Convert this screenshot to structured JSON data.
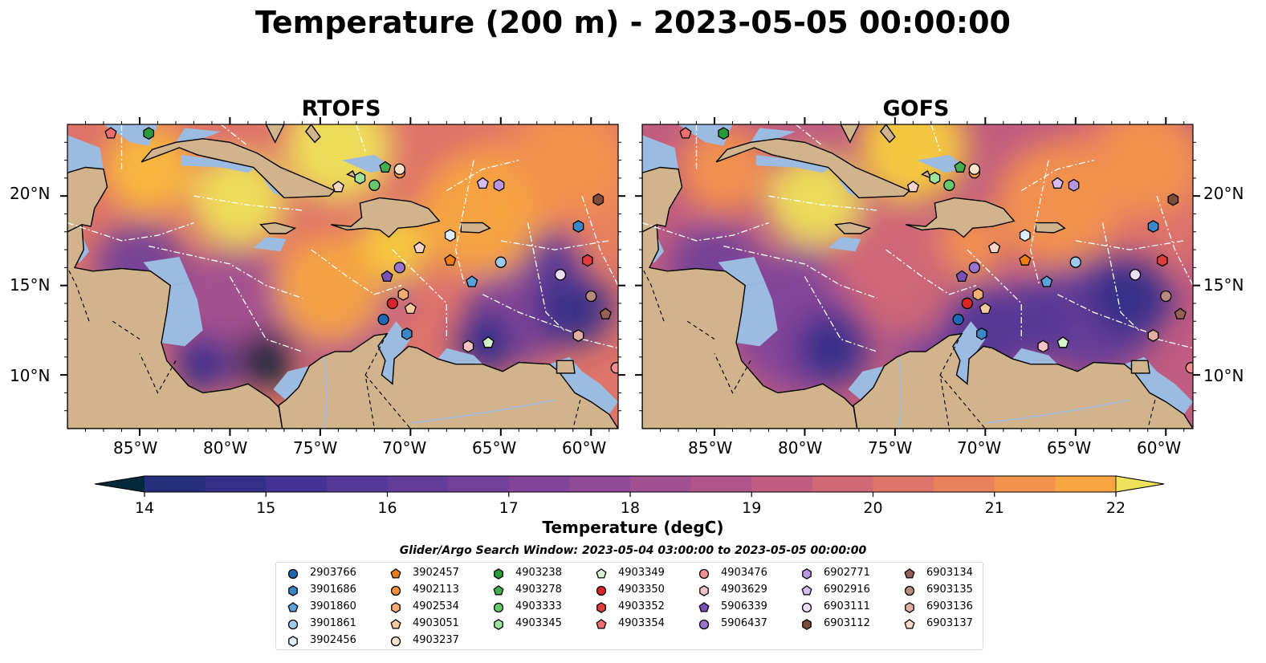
{
  "figure": {
    "title": "Temperature (200 m) - 2023-05-05 00:00:00"
  },
  "panels": [
    {
      "title": "RTOFS"
    },
    {
      "title": "GOFS"
    }
  ],
  "axes": {
    "x_ticks": [
      "85°W",
      "80°W",
      "75°W",
      "70°W",
      "65°W",
      "60°W"
    ],
    "y_ticks": [
      "20°N",
      "15°N",
      "10°N"
    ]
  },
  "colorbar": {
    "label": "Temperature (degC)",
    "ticks": [
      "14",
      "15",
      "16",
      "17",
      "18",
      "19",
      "20",
      "21",
      "22"
    ],
    "colors": [
      "#05283a",
      "#0c2e4c",
      "#182f66",
      "#262f7b",
      "#352f8a",
      "#453393",
      "#543897",
      "#623c98",
      "#714098",
      "#804599",
      "#904a96",
      "#a04f91",
      "#b0558a",
      "#c15d80",
      "#d06876",
      "#de746a",
      "#e9825c",
      "#f2924d",
      "#f7a541",
      "#f9b93b",
      "#f6cd3d",
      "#ede35a"
    ]
  },
  "legend": {
    "title": "Glider/Argo Search Window: 2023-05-04 03:00:00 to 2023-05-05 00:00:00",
    "items": [
      {
        "id": "2903766",
        "marker": "circle",
        "color": "#1f68b3"
      },
      {
        "id": "3901686",
        "marker": "hexagon",
        "color": "#3a86c6"
      },
      {
        "id": "3901860",
        "marker": "pentagon",
        "color": "#5ba3dc"
      },
      {
        "id": "3901861",
        "marker": "circle",
        "color": "#9ccaee"
      },
      {
        "id": "3902456",
        "marker": "hexagon",
        "color": "#ddeeff"
      },
      {
        "id": "3902457",
        "marker": "pentagon",
        "color": "#f07d10"
      },
      {
        "id": "4902113",
        "marker": "circle",
        "color": "#f5903a"
      },
      {
        "id": "4902534",
        "marker": "hexagon",
        "color": "#f9ad70"
      },
      {
        "id": "4903051",
        "marker": "pentagon",
        "color": "#fbc99d"
      },
      {
        "id": "4903237",
        "marker": "circle",
        "color": "#fde3c9"
      },
      {
        "id": "4903238",
        "marker": "hexagon",
        "color": "#2a9a3b"
      },
      {
        "id": "4903278",
        "marker": "pentagon",
        "color": "#44ad4d"
      },
      {
        "id": "4903333",
        "marker": "circle",
        "color": "#68c96a"
      },
      {
        "id": "4903345",
        "marker": "hexagon",
        "color": "#9fe39a"
      },
      {
        "id": "4903349",
        "marker": "pentagon",
        "color": "#d3f5cc"
      },
      {
        "id": "4903350",
        "marker": "circle",
        "color": "#d62628"
      },
      {
        "id": "4903352",
        "marker": "hexagon",
        "color": "#e03b3e"
      },
      {
        "id": "4903354",
        "marker": "pentagon",
        "color": "#ef6f6f"
      },
      {
        "id": "4903476",
        "marker": "circle",
        "color": "#f3908f"
      },
      {
        "id": "4903629",
        "marker": "hexagon",
        "color": "#fbc3c3"
      },
      {
        "id": "5906339",
        "marker": "pentagon",
        "color": "#7b4fb6"
      },
      {
        "id": "5906437",
        "marker": "circle",
        "color": "#9a73cc"
      },
      {
        "id": "6902771",
        "marker": "hexagon",
        "color": "#b896e0"
      },
      {
        "id": "6902916",
        "marker": "pentagon",
        "color": "#d6bcf2"
      },
      {
        "id": "6903111",
        "marker": "circle",
        "color": "#efdcfb"
      },
      {
        "id": "6903112",
        "marker": "hexagon",
        "color": "#7d4c3a"
      },
      {
        "id": "6903134",
        "marker": "pentagon",
        "color": "#966055"
      },
      {
        "id": "6903135",
        "marker": "circle",
        "color": "#b88a7e"
      },
      {
        "id": "6903136",
        "marker": "hexagon",
        "color": "#e1afa2"
      },
      {
        "id": "6903137",
        "marker": "pentagon",
        "color": "#fbd5c8"
      }
    ]
  },
  "chart_data": {
    "type": "heatmap",
    "xlim": [
      -89,
      -58.5
    ],
    "ylim": [
      7,
      24
    ],
    "units": "degC",
    "vmin": 14,
    "vmax": 22,
    "stations": [
      {
        "id": "2903766",
        "lon": -71.5,
        "lat": 13.1
      },
      {
        "id": "3901686",
        "lon": -70.2,
        "lat": 12.3
      },
      {
        "id": "3901860",
        "lon": -66.6,
        "lat": 15.2
      },
      {
        "id": "3901861",
        "lon": -65.0,
        "lat": 16.3
      },
      {
        "id": "3902456",
        "lon": -67.8,
        "lat": 17.8
      },
      {
        "id": "3902457",
        "lon": -67.8,
        "lat": 16.4
      },
      {
        "id": "4902113",
        "lon": -70.6,
        "lat": 21.3
      },
      {
        "id": "4902534",
        "lon": -70.4,
        "lat": 14.5
      },
      {
        "id": "4903051",
        "lon": -70.0,
        "lat": 13.7
      },
      {
        "id": "4903237",
        "lon": -70.6,
        "lat": 21.5
      },
      {
        "id": "4903238",
        "lon": -84.5,
        "lat": 23.5
      },
      {
        "id": "4903278",
        "lon": -71.4,
        "lat": 21.6
      },
      {
        "id": "4903333",
        "lon": -72.0,
        "lat": 20.6
      },
      {
        "id": "4903345",
        "lon": -72.8,
        "lat": 21.0
      },
      {
        "id": "4903349",
        "lon": -65.7,
        "lat": 11.8
      },
      {
        "id": "4903350",
        "lon": -71.0,
        "lat": 14.0
      },
      {
        "id": "4903352",
        "lon": -60.2,
        "lat": 16.4
      },
      {
        "id": "4903354",
        "lon": -86.6,
        "lat": 23.5
      },
      {
        "id": "4903476",
        "lon": -58.6,
        "lat": 10.4
      },
      {
        "id": "4903629",
        "lon": -66.8,
        "lat": 11.6
      },
      {
        "id": "5906339",
        "lon": -71.3,
        "lat": 15.5
      },
      {
        "id": "5906437",
        "lon": -70.6,
        "lat": 16.0
      },
      {
        "id": "6902771",
        "lon": -65.1,
        "lat": 20.6
      },
      {
        "id": "6902916",
        "lon": -66.0,
        "lat": 20.7
      },
      {
        "id": "6903111",
        "lon": -61.7,
        "lat": 15.6
      },
      {
        "id": "6903112",
        "lon": -59.6,
        "lat": 19.8
      },
      {
        "id": "6903134",
        "lon": -59.2,
        "lat": 13.4
      },
      {
        "id": "6903135",
        "lon": -60.0,
        "lat": 14.4
      },
      {
        "id": "6903136",
        "lon": -60.7,
        "lat": 12.2
      },
      {
        "id": "6903137",
        "lon": -69.5,
        "lat": 17.1
      },
      {
        "id": "6903137b",
        "lon": -74.0,
        "lat": 20.5
      },
      {
        "id": "3901686b",
        "lon": -60.7,
        "lat": 18.3
      }
    ],
    "warm_blobs_rtofs": [
      {
        "lon": -79.5,
        "lat": 19.8,
        "t": 22,
        "r": 2.6
      },
      {
        "lon": -74.0,
        "lat": 22.7,
        "t": 21.8,
        "r": 3.0
      },
      {
        "lon": -71.0,
        "lat": 17.1,
        "t": 21.6,
        "r": 2.0
      },
      {
        "lon": -74.5,
        "lat": 14.8,
        "t": 20.7,
        "r": 3.0
      },
      {
        "lon": -66.0,
        "lat": 19.0,
        "t": 20.7,
        "r": 3.5
      },
      {
        "lon": -84.5,
        "lat": 21.5,
        "t": 21.0,
        "r": 2.5
      },
      {
        "lon": -69.0,
        "lat": 11.5,
        "t": 19.8,
        "r": 2.5
      },
      {
        "lon": -61.0,
        "lat": 22.0,
        "t": 20.3,
        "r": 3.0
      }
    ],
    "cold_blobs_rtofs": [
      {
        "lon": -78.0,
        "lat": 10.8,
        "t": 14.3,
        "r": 1.6
      },
      {
        "lon": -81.5,
        "lat": 10.6,
        "t": 15.8,
        "r": 1.6
      },
      {
        "lon": -66.0,
        "lat": 11.8,
        "t": 15.8,
        "r": 1.8
      },
      {
        "lon": -61.0,
        "lat": 13.8,
        "t": 15.6,
        "r": 2.2
      },
      {
        "lon": -62.0,
        "lat": 16.5,
        "t": 16.3,
        "r": 1.6
      },
      {
        "lon": -85.0,
        "lat": 16.0,
        "t": 17.2,
        "r": 2.5
      }
    ],
    "warm_blobs_gofs": [
      {
        "lon": -79.5,
        "lat": 19.8,
        "t": 22,
        "r": 2.6
      },
      {
        "lon": -74.0,
        "lat": 22.7,
        "t": 21.3,
        "r": 3.0
      },
      {
        "lon": -71.0,
        "lat": 17.1,
        "t": 20.3,
        "r": 2.0
      },
      {
        "lon": -74.5,
        "lat": 15.0,
        "t": 19.3,
        "r": 3.0
      },
      {
        "lon": -66.0,
        "lat": 19.5,
        "t": 20.4,
        "r": 3.5
      },
      {
        "lon": -84.5,
        "lat": 21.5,
        "t": 20.5,
        "r": 2.5
      },
      {
        "lon": -61.0,
        "lat": 22.0,
        "t": 20.3,
        "r": 3.0
      }
    ],
    "cold_blobs_gofs": [
      {
        "lon": -78.5,
        "lat": 11.5,
        "t": 15.8,
        "r": 2.0
      },
      {
        "lon": -70.0,
        "lat": 12.3,
        "t": 16.3,
        "r": 2.5
      },
      {
        "lon": -62.0,
        "lat": 14.5,
        "t": 15.6,
        "r": 2.4
      },
      {
        "lon": -67.5,
        "lat": 13.0,
        "t": 16.2,
        "r": 2.2
      },
      {
        "lon": -85.0,
        "lat": 16.0,
        "t": 17.0,
        "r": 2.5
      }
    ]
  }
}
